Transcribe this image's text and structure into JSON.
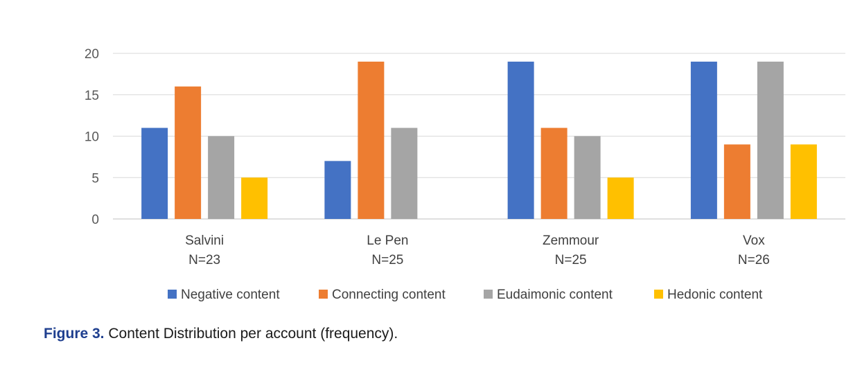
{
  "chart_data": {
    "type": "bar",
    "categories": [
      {
        "name": "Salvini",
        "n": "N=23"
      },
      {
        "name": "Le Pen",
        "n": "N=25"
      },
      {
        "name": "Zemmour",
        "n": "N=25"
      },
      {
        "name": "Vox",
        "n": "N=26"
      }
    ],
    "series": [
      {
        "name": "Negative content",
        "color": "#4472C4",
        "values": [
          11,
          7,
          19,
          19
        ]
      },
      {
        "name": "Connecting content",
        "color": "#ED7D31",
        "values": [
          16,
          19,
          11,
          9
        ]
      },
      {
        "name": "Eudaimonic content",
        "color": "#A5A5A5",
        "values": [
          10,
          11,
          10,
          19
        ]
      },
      {
        "name": "Hedonic content",
        "color": "#FFC000",
        "values": [
          5,
          0,
          5,
          9
        ]
      }
    ],
    "ylim": [
      0,
      20
    ],
    "yticks": [
      0,
      5,
      10,
      15,
      20
    ],
    "grid": true,
    "legend_position": "bottom"
  },
  "caption": {
    "label": "Figure 3.",
    "text": " Content Distribution per account (frequency)."
  }
}
